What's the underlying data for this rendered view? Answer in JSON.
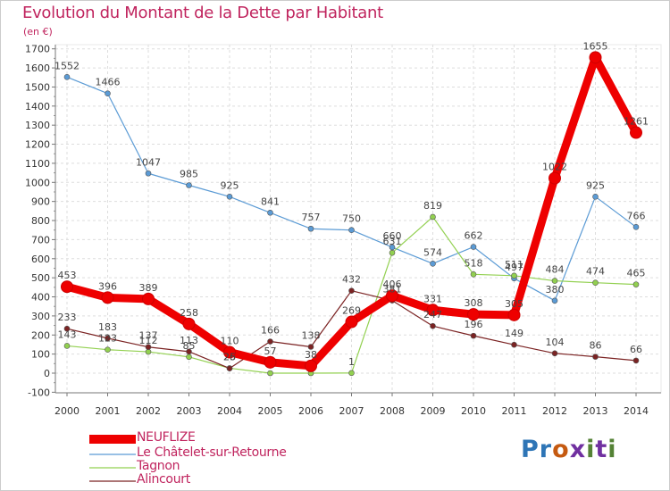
{
  "title": "Evolution du Montant de la Dette par Habitant",
  "unit": "(en €)",
  "logo": "Proxiti",
  "chart_data": {
    "type": "line",
    "x": [
      "2000",
      "2001",
      "2002",
      "2003",
      "2004",
      "2005",
      "2006",
      "2007",
      "2008",
      "2009",
      "2010",
      "2011",
      "2012",
      "2013",
      "2014"
    ],
    "ylim": [
      -100,
      1700
    ],
    "yticks": [
      -100,
      0,
      100,
      200,
      300,
      400,
      500,
      600,
      700,
      800,
      900,
      1000,
      1100,
      1200,
      1300,
      1400,
      1500,
      1600,
      1700
    ],
    "grid": true,
    "legend_position": "bottom-left",
    "series": [
      {
        "name": "NEUFLIZE",
        "color": "#ee0000",
        "values": [
          453,
          396,
          389,
          258,
          110,
          57,
          38,
          269,
          406,
          331,
          308,
          305,
          1022,
          1655,
          1261
        ]
      },
      {
        "name": "Le Châtelet-sur-Retourne",
        "color": "#5b9bd5",
        "values": [
          1552,
          1466,
          1047,
          985,
          925,
          841,
          757,
          750,
          660,
          574,
          662,
          497,
          380,
          925,
          766
        ]
      },
      {
        "name": "Tagnon",
        "color": "#92d050",
        "values": [
          143,
          123,
          112,
          85,
          26,
          0,
          0,
          1,
          631,
          819,
          518,
          511,
          484,
          474,
          465
        ]
      },
      {
        "name": "Alincourt",
        "color": "#7b2323",
        "values": [
          233,
          183,
          137,
          113,
          25,
          166,
          138,
          432,
          381,
          247,
          196,
          149,
          104,
          86,
          66
        ]
      }
    ],
    "labels": [
      [
        "453",
        "396",
        "389",
        "258",
        "110",
        "57",
        "38",
        "269",
        "406",
        "331",
        "308",
        "305",
        "1022",
        "1655",
        "1261"
      ],
      [
        "1552",
        "1466",
        "1047",
        "985",
        "925",
        "841",
        "757",
        "750",
        "660",
        "574",
        "662",
        "497",
        "380",
        "925",
        "766"
      ],
      [
        "143",
        "123",
        "112",
        "85",
        "26",
        "",
        "",
        "1",
        "631",
        "819",
        "518",
        "511",
        "484",
        "474",
        "465"
      ],
      [
        "233",
        "183",
        "137",
        "113",
        "25",
        "166",
        "138",
        "432",
        "381",
        "247",
        "196",
        "149",
        "104",
        "86",
        "66"
      ]
    ]
  }
}
